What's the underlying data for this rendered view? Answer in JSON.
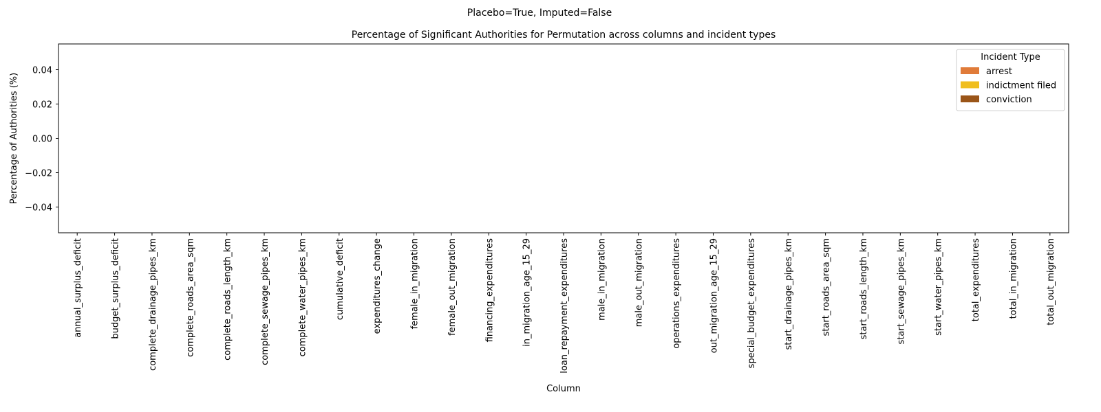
{
  "chart_data": {
    "type": "bar",
    "suptitle": "Placebo=True, Imputed=False",
    "title": "Percentage of Significant Authorities for Permutation across columns and incident types",
    "xlabel": "Column",
    "ylabel": "Percentage of Authorities (%)",
    "categories": [
      "annual_surplus_deficit",
      "budget_surplus_deficit",
      "complete_drainage_pipes_km",
      "complete_roads_area_sqm",
      "complete_roads_length_km",
      "complete_sewage_pipes_km",
      "complete_water_pipes_km",
      "cumulative_deficit",
      "expenditures_change",
      "female_in_migration",
      "female_out_migration",
      "financing_expenditures",
      "in_migration_age_15_29",
      "loan_repayment_expenditures",
      "male_in_migration",
      "male_out_migration",
      "operations_expenditures",
      "out_migration_age_15_29",
      "special_budget_expenditures",
      "start_drainage_pipes_km",
      "start_roads_area_sqm",
      "start_roads_length_km",
      "start_sewage_pipes_km",
      "start_water_pipes_km",
      "total_expenditures",
      "total_in_migration",
      "total_out_migration"
    ],
    "series": [
      {
        "name": "arrest",
        "color": "#e07b39",
        "values": [
          0,
          0,
          0,
          0,
          0,
          0,
          0,
          0,
          0,
          0,
          0,
          0,
          0,
          0,
          0,
          0,
          0,
          0,
          0,
          0,
          0,
          0,
          0,
          0,
          0,
          0,
          0
        ]
      },
      {
        "name": "indictment filed",
        "color": "#f0be1e",
        "values": [
          0,
          0,
          0,
          0,
          0,
          0,
          0,
          0,
          0,
          0,
          0,
          0,
          0,
          0,
          0,
          0,
          0,
          0,
          0,
          0,
          0,
          0,
          0,
          0,
          0,
          0,
          0
        ]
      },
      {
        "name": "conviction",
        "color": "#9a5518",
        "values": [
          0,
          0,
          0,
          0,
          0,
          0,
          0,
          0,
          0,
          0,
          0,
          0,
          0,
          0,
          0,
          0,
          0,
          0,
          0,
          0,
          0,
          0,
          0,
          0,
          0,
          0,
          0
        ]
      }
    ],
    "legend_title": "Incident Type",
    "legend": "upper right",
    "ylim": [
      -0.055,
      0.055
    ],
    "yticks": [
      {
        "value": -0.04,
        "label": "−0.04"
      },
      {
        "value": -0.02,
        "label": "−0.02"
      },
      {
        "value": 0,
        "label": "0.00"
      },
      0.02,
      0.04
    ]
  }
}
